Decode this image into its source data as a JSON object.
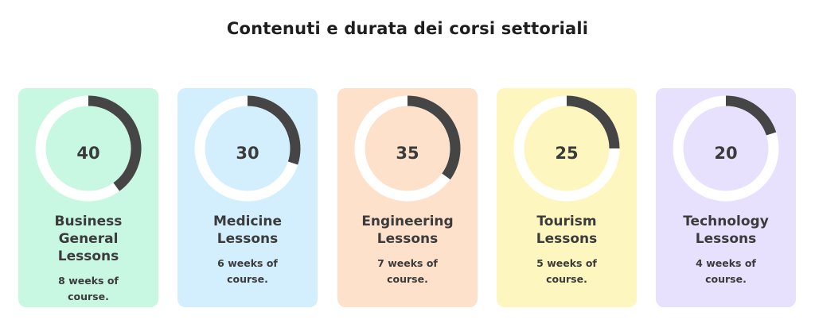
{
  "title": "Contenuti e durata dei corsi settoriali",
  "colors": {
    "ring_track": "#ffffff",
    "ring_arc": "#454545"
  },
  "cards": [
    {
      "value": "40",
      "fraction": 0.4,
      "name": [
        "Business",
        "General",
        "Lessons"
      ],
      "desc": [
        "8 weeks of",
        "course."
      ],
      "color": "#c8f7e2"
    },
    {
      "value": "30",
      "fraction": 0.3,
      "name": [
        "Medicine",
        "Lessons"
      ],
      "desc": [
        "6 weeks of",
        "course."
      ],
      "color": "#d3effd"
    },
    {
      "value": "35",
      "fraction": 0.35,
      "name": [
        "Engineering",
        "Lessons"
      ],
      "desc": [
        "7 weeks of",
        "course."
      ],
      "color": "#fde1cb"
    },
    {
      "value": "25",
      "fraction": 0.25,
      "name": [
        "Tourism",
        "Lessons"
      ],
      "desc": [
        "5 weeks of",
        "course."
      ],
      "color": "#fef6bf"
    },
    {
      "value": "20",
      "fraction": 0.2,
      "name": [
        "Technology",
        "Lessons"
      ],
      "desc": [
        "4 weeks of",
        "course."
      ],
      "color": "#e7e1fd"
    }
  ]
}
